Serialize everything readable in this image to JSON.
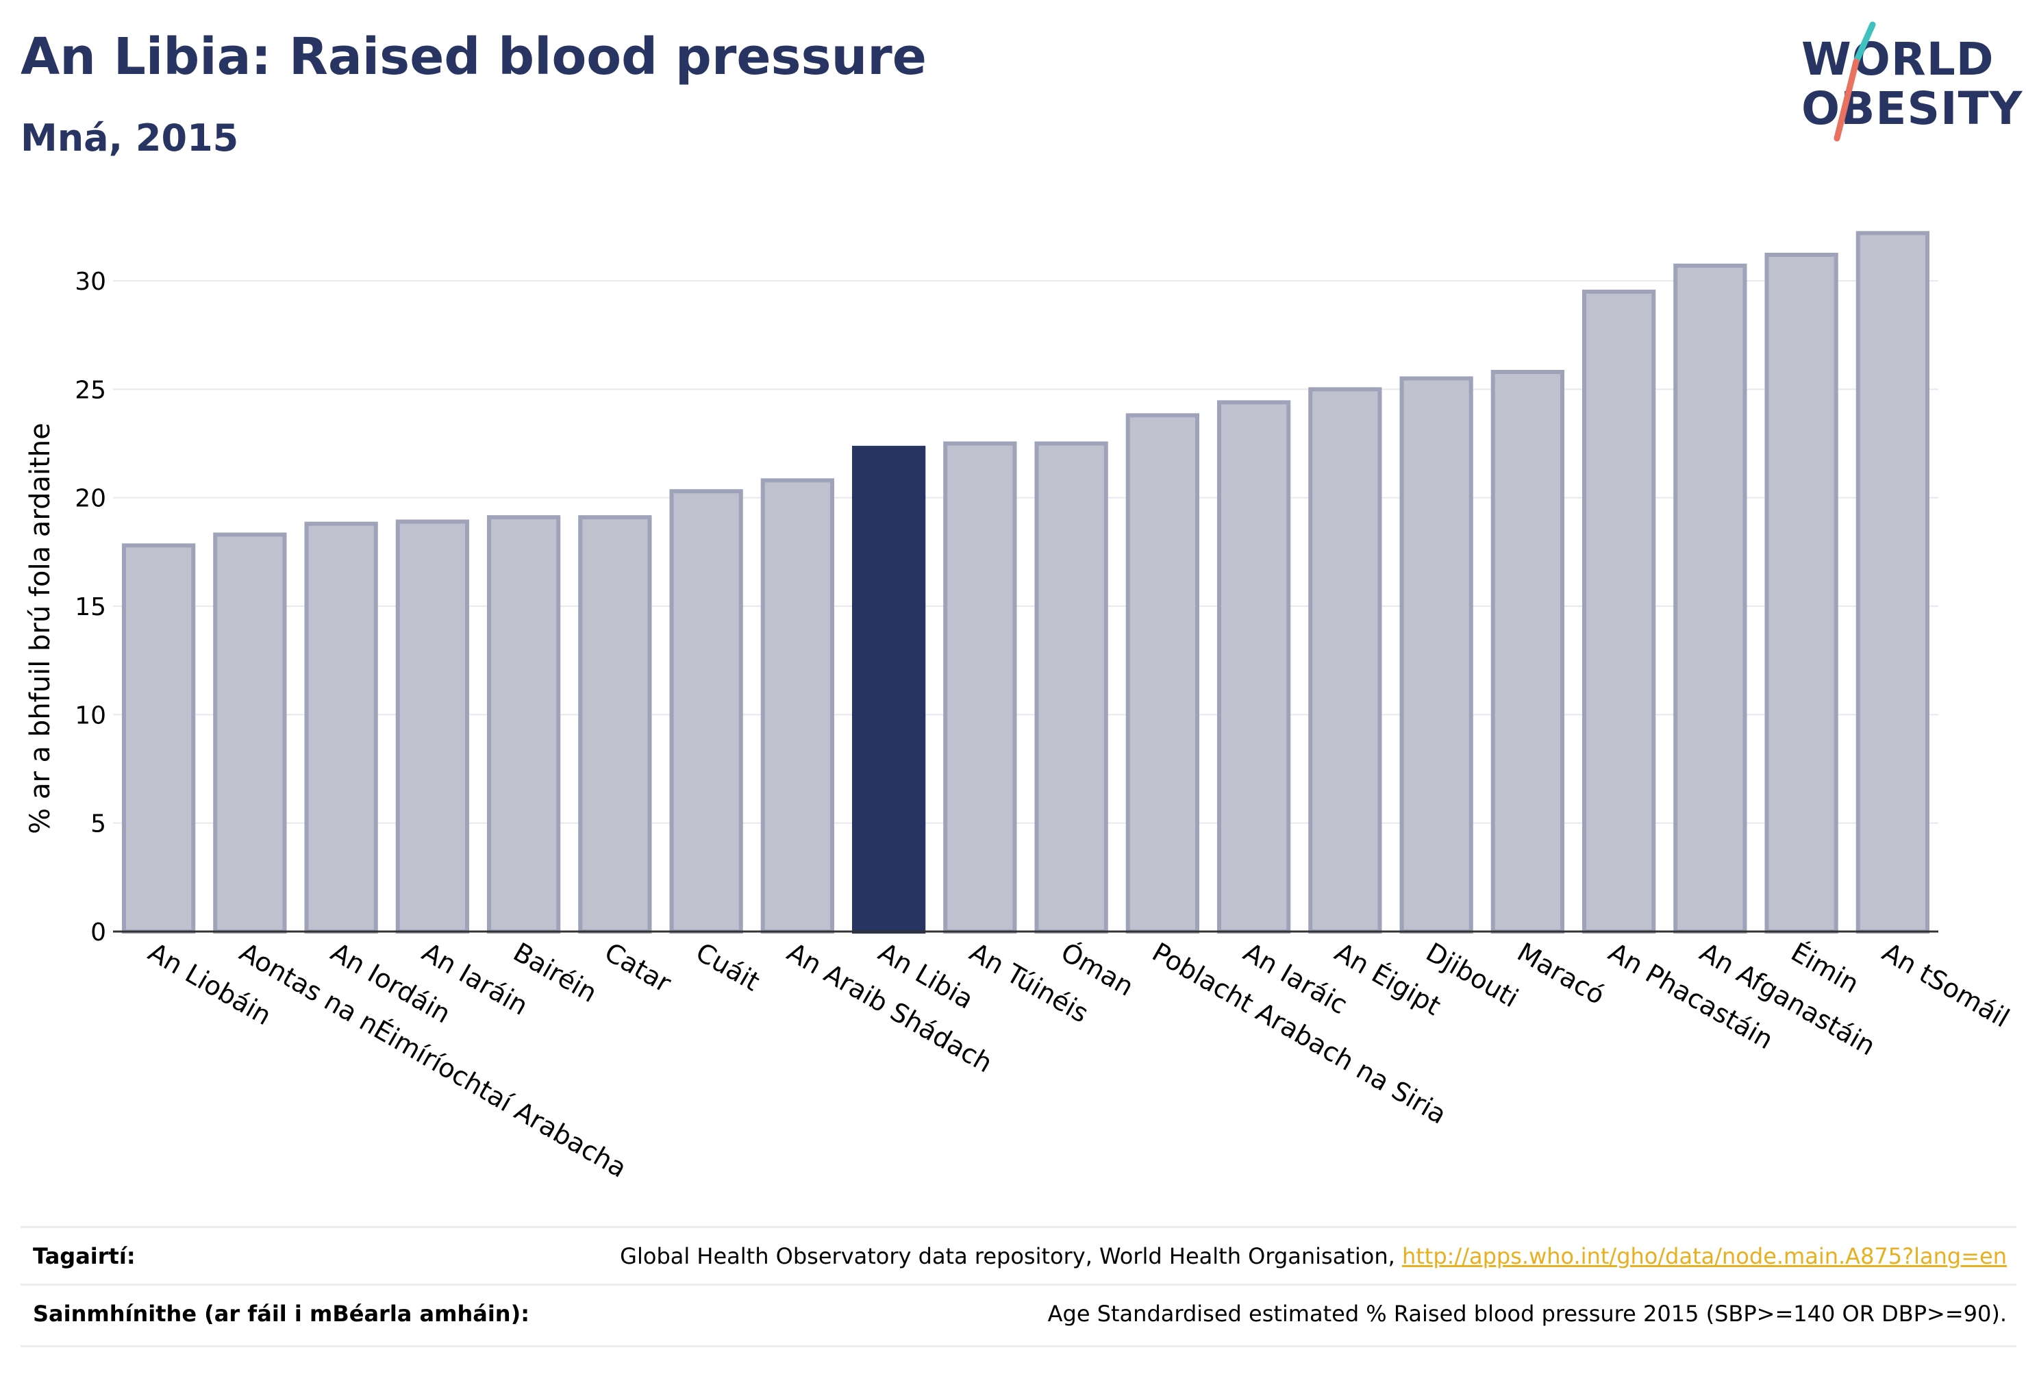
{
  "header": {
    "title": "An Libia: Raised blood pressure",
    "subtitle": "Mná, 2015"
  },
  "logo": {
    "line1": "WORLD",
    "line2": "OBESITY"
  },
  "colors": {
    "highlight": "#283461",
    "bar": "#bfc2ce",
    "bar_stroke": "#9ea3ba",
    "accent_teal": "#3fc1c0",
    "accent_coral": "#e8715f",
    "link": "#e8b020"
  },
  "chart_data": {
    "type": "bar",
    "title": "An Libia: Raised blood pressure",
    "subtitle": "Mná, 2015",
    "ylabel": "% ar a bhfuil brú fola ardaithe",
    "xlabel": "",
    "ylim": [
      0,
      33
    ],
    "yticks": [
      0,
      5,
      10,
      15,
      20,
      25,
      30
    ],
    "grid": true,
    "highlight": "An Libia",
    "categories": [
      "An Liobáin",
      "Aontas na nÉimíríochtaí Arabacha",
      "An Iordáin",
      "An Iaráin",
      "Bairéin",
      "Catar",
      "Cuáit",
      "An Araib Shádach",
      "An Libia",
      "An Túinéis",
      "Óman",
      "Poblacht Arabach na Siria",
      "An Iaráic",
      "An Éigipt",
      "Djibouti",
      "Maracó",
      "An Phacastáin",
      "An Afganastáin",
      "Éimin",
      "An tSomáil"
    ],
    "values": [
      17.8,
      18.3,
      18.8,
      18.9,
      19.1,
      19.1,
      20.3,
      20.8,
      22.3,
      22.5,
      22.5,
      23.8,
      24.4,
      25.0,
      25.5,
      25.8,
      29.5,
      30.7,
      31.2,
      32.2
    ]
  },
  "footer": {
    "references_label": "Tagairtí:",
    "references_text": "Global Health Observatory data repository, World Health Organisation, ",
    "references_link": "http://apps.who.int/gho/data/node.main.A875?lang=en",
    "definitions_label": "Sainmhínithe (ar fáil i mBéarla amháin):",
    "definitions_text": "Age Standardised estimated % Raised blood pressure 2015 (SBP>=140 OR DBP>=90)."
  }
}
